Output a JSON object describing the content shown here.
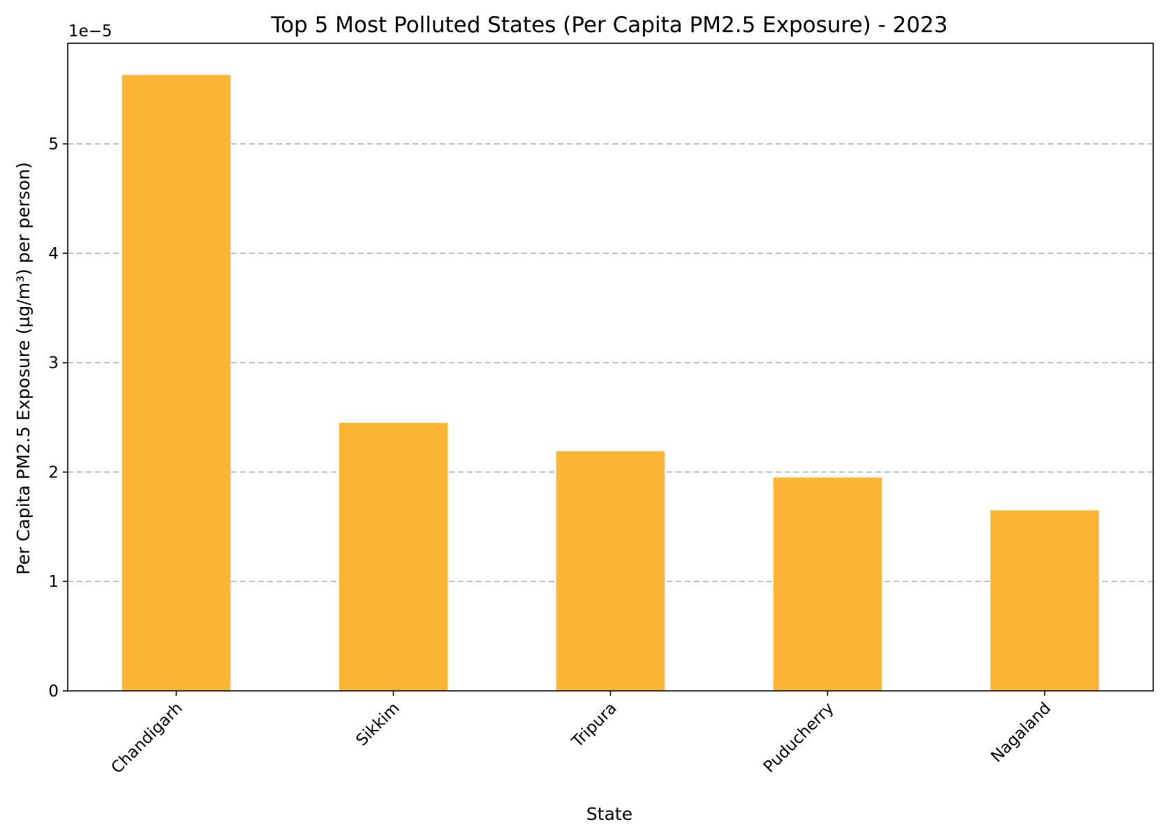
{
  "chart_data": {
    "type": "bar",
    "title": "Top 5 Most Polluted States (Per Capita PM2.5 Exposure) - 2023",
    "xlabel": "State",
    "ylabel": "Per Capita PM2.5 Exposure (µg/m³) per person)",
    "y_scale_label": "1e−5",
    "y_scale_factor": 1e-05,
    "categories": [
      "Chandigarh",
      "Sikkim",
      "Tripura",
      "Puducherry",
      "Nagaland"
    ],
    "values": [
      5.63e-05,
      2.45e-05,
      2.19e-05,
      1.95e-05,
      1.65e-05
    ],
    "ylim": [
      0,
      5.92e-05
    ],
    "yticks": [
      0,
      1,
      2,
      3,
      4,
      5
    ],
    "grid": "y-dashed",
    "bar_color": "#fdb535",
    "grid_color": "#b0b0b0",
    "legend": "none"
  }
}
